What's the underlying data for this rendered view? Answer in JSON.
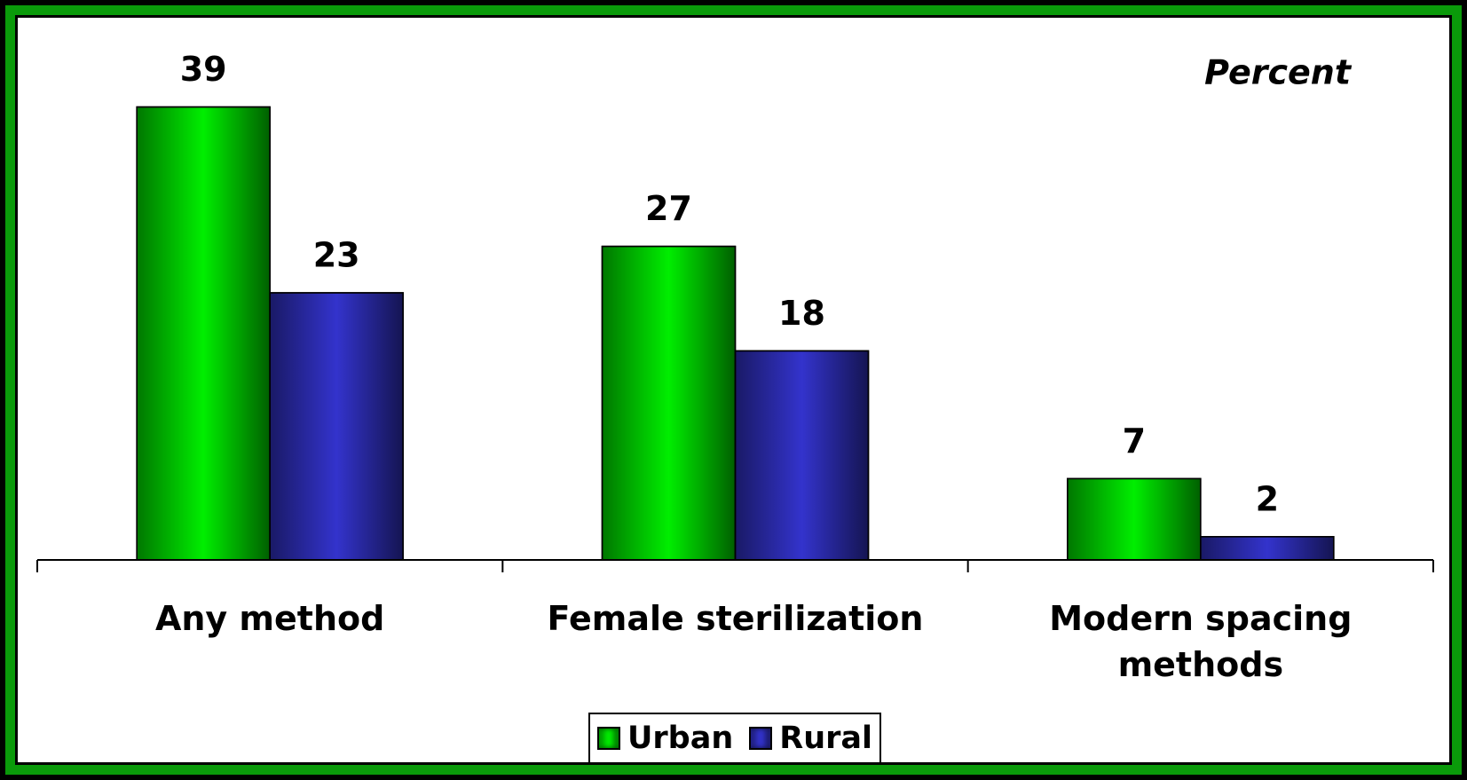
{
  "chart_data": {
    "type": "bar",
    "annotation": "Percent",
    "categories": [
      "Any method",
      "Female sterilization",
      "Modern spacing methods"
    ],
    "series": [
      {
        "name": "Urban",
        "color": "#00ee00",
        "values": [
          39,
          27,
          7
        ]
      },
      {
        "name": "Rural",
        "color": "#3333cc",
        "values": [
          23,
          18,
          2
        ]
      }
    ],
    "ylim": [
      0,
      45
    ],
    "legend": "bottom"
  }
}
